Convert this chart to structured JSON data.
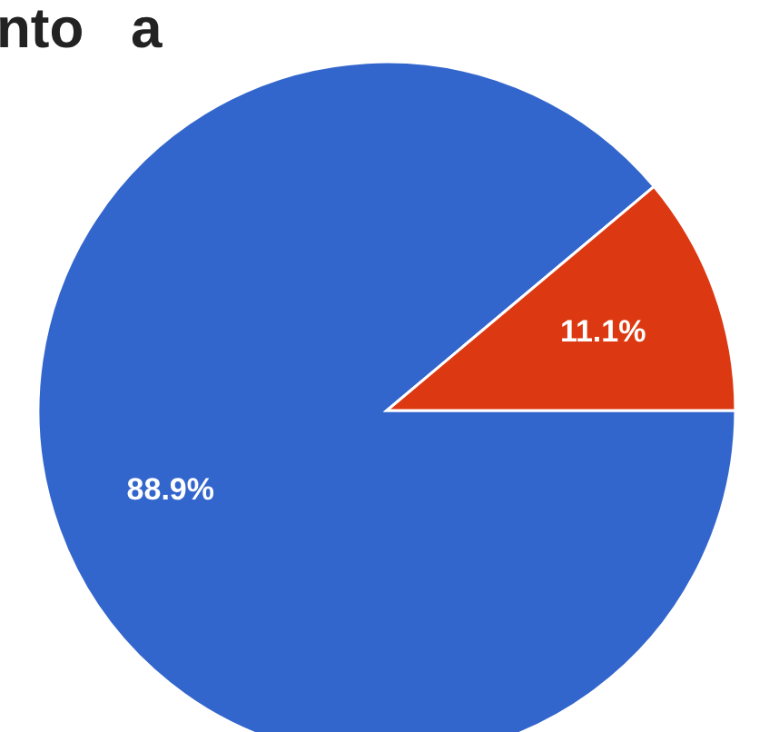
{
  "chart_data": {
    "type": "pie",
    "title": "nto   a",
    "categories": [
      null,
      null
    ],
    "values": [
      88.9,
      11.1
    ],
    "colors": [
      "#3366cc",
      "#dc3912"
    ],
    "value_labels": [
      "88.9%",
      "11.1%"
    ]
  }
}
